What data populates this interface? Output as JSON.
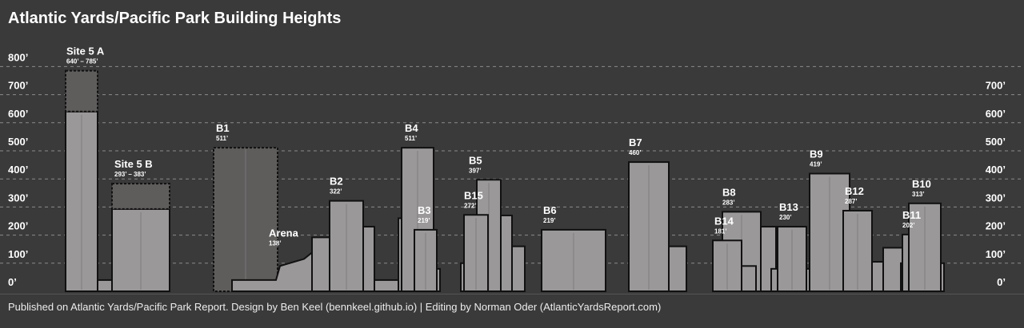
{
  "colors": {
    "background": "#3a3a3a",
    "building_fill": "#9a9898",
    "building_stroke": "#111111",
    "grid": "#9a9a9a",
    "text": "#ffffff",
    "proposed_fill": "#5f5d5c"
  },
  "header": {
    "title": "Atlantic Yards/Pacific Park Building Heights"
  },
  "footer": {
    "credits": "Published on Atlantic Yards/Pacific Park Report. Design by Ben Keel (bennkeel.github.io) | Editing by Norman Oder (AtlanticYardsReport.com)"
  },
  "chart_data": {
    "type": "bar",
    "title": "Atlantic Yards/Pacific Park Building Heights",
    "y_unit": "feet",
    "ylim": [
      0,
      800
    ],
    "grid": true,
    "y_ticks_left": [
      "0’",
      "100’",
      "200’",
      "300’",
      "400’",
      "500’",
      "600’",
      "700’",
      "800’"
    ],
    "y_ticks_right": [
      "0’",
      "100’",
      "200’",
      "300’",
      "400’",
      "500’",
      "600’",
      "700’"
    ],
    "buildings": [
      {
        "name": "Site 5 A",
        "height_label": "640’ – 785’",
        "height_min": 640,
        "height_max": 785,
        "range": true
      },
      {
        "name": "Site 5 B",
        "height_label": "293’ – 383’",
        "height_min": 293,
        "height_max": 383,
        "range": true
      },
      {
        "name": "B1",
        "height_label": "511’",
        "height": 511,
        "proposed": true
      },
      {
        "name": "Arena",
        "height_label": "138’",
        "height": 138
      },
      {
        "name": "B2",
        "height_label": "322’",
        "height": 322
      },
      {
        "name": "B4",
        "height_label": "511’",
        "height": 511
      },
      {
        "name": "B3",
        "height_label": "219’",
        "height": 219
      },
      {
        "name": "B5",
        "height_label": "397’",
        "height": 397
      },
      {
        "name": "B15",
        "height_label": "272’",
        "height": 272
      },
      {
        "name": "B6",
        "height_label": "219’",
        "height": 219
      },
      {
        "name": "B7",
        "height_label": "460’",
        "height": 460
      },
      {
        "name": "B8",
        "height_label": "283’",
        "height": 283
      },
      {
        "name": "B14",
        "height_label": "181’",
        "height": 181
      },
      {
        "name": "B13",
        "height_label": "230’",
        "height": 230
      },
      {
        "name": "B9",
        "height_label": "419’",
        "height": 419
      },
      {
        "name": "B12",
        "height_label": "287’",
        "height": 287
      },
      {
        "name": "B11",
        "height_label": "202’",
        "height": 202
      },
      {
        "name": "B10",
        "height_label": "313’",
        "height": 313
      }
    ]
  }
}
